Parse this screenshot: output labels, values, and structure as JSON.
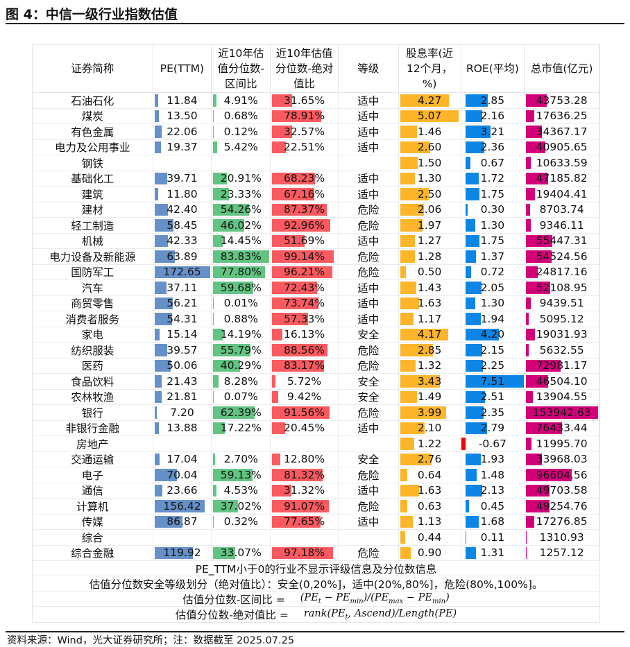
{
  "title": "图 4：中信一级行业指数估值",
  "headers": [
    "证券简称",
    "PE(TTM)",
    "近10年估值分位数-区间比",
    "近10年估值分位数-绝对值比",
    "等级",
    "股息率(近12个月，%)",
    "ROE(平均)",
    "总市值(亿元)"
  ],
  "colors": {
    "pe": "#6690c8",
    "pct_range": "#62c482",
    "pct_abs": "#fb5a60",
    "dividend": "#fdb52a",
    "roe": "#0b86e6",
    "roe_negative": "#ff0000",
    "mv": "#d3007a"
  },
  "rows": [
    [
      "石油石化",
      "11.84",
      "4.91%",
      "31.65%",
      "适中",
      "4.27",
      "2.85",
      "43753.28"
    ],
    [
      "煤炭",
      "13.50",
      "0.68%",
      "78.91%",
      "适中",
      "5.07",
      "2.16",
      "17636.25"
    ],
    [
      "有色金属",
      "22.06",
      "0.12%",
      "32.57%",
      "适中",
      "1.46",
      "3.21",
      "34367.17"
    ],
    [
      "电力及公用事业",
      "19.37",
      "5.42%",
      "22.51%",
      "适中",
      "2.60",
      "2.36",
      "40905.65"
    ],
    [
      "钢铁",
      "",
      "",
      "",
      "",
      "1.50",
      "0.67",
      "10633.59"
    ],
    [
      "基础化工",
      "39.71",
      "20.91%",
      "68.23%",
      "适中",
      "1.30",
      "1.72",
      "47185.82"
    ],
    [
      "建筑",
      "11.80",
      "23.33%",
      "67.16%",
      "适中",
      "2.50",
      "1.75",
      "19404.41"
    ],
    [
      "建材",
      "42.40",
      "54.26%",
      "87.37%",
      "危险",
      "2.06",
      "0.30",
      "8703.74"
    ],
    [
      "轻工制造",
      "58.45",
      "46.02%",
      "92.96%",
      "危险",
      "1.97",
      "1.30",
      "9346.11"
    ],
    [
      "机械",
      "42.33",
      "14.45%",
      "51.69%",
      "适中",
      "1.27",
      "1.75",
      "55447.31"
    ],
    [
      "电力设备及新能源",
      "63.89",
      "83.83%",
      "99.14%",
      "危险",
      "1.28",
      "1.37",
      "54524.56"
    ],
    [
      "国防军工",
      "172.65",
      "77.80%",
      "96.21%",
      "危险",
      "0.50",
      "0.72",
      "24817.16"
    ],
    [
      "汽车",
      "37.11",
      "59.68%",
      "72.43%",
      "适中",
      "1.43",
      "2.05",
      "52108.95"
    ],
    [
      "商贸零售",
      "56.21",
      "0.01%",
      "73.74%",
      "适中",
      "1.63",
      "1.30",
      "9439.51"
    ],
    [
      "消费者服务",
      "54.31",
      "0.88%",
      "57.33%",
      "适中",
      "1.17",
      "1.94",
      "5095.12"
    ],
    [
      "家电",
      "15.14",
      "14.19%",
      "16.13%",
      "安全",
      "4.17",
      "4.20",
      "19031.93"
    ],
    [
      "纺织服装",
      "39.57",
      "55.79%",
      "88.56%",
      "危险",
      "2.85",
      "2.15",
      "5632.55"
    ],
    [
      "医药",
      "50.06",
      "40.29%",
      "83.17%",
      "危险",
      "1.32",
      "2.25",
      "72981.17"
    ],
    [
      "食品饮料",
      "21.43",
      "8.28%",
      "5.72%",
      "安全",
      "3.43",
      "7.51",
      "46504.10"
    ],
    [
      "农林牧渔",
      "21.81",
      "0.07%",
      "9.42%",
      "安全",
      "1.49",
      "2.51",
      "13904.55"
    ],
    [
      "银行",
      "7.20",
      "62.39%",
      "91.56%",
      "危险",
      "3.99",
      "2.35",
      "153942.63"
    ],
    [
      "非银行金融",
      "13.88",
      "17.22%",
      "20.45%",
      "适中",
      "2.10",
      "2.79",
      "76433.44"
    ],
    [
      "房地产",
      "",
      "",
      "",
      "",
      "1.22",
      "-0.67",
      "11995.70"
    ],
    [
      "交通运输",
      "17.04",
      "2.70%",
      "12.80%",
      "安全",
      "2.76",
      "1.93",
      "33968.03"
    ],
    [
      "电子",
      "70.04",
      "59.13%",
      "81.32%",
      "危险",
      "0.64",
      "1.48",
      "96604.56"
    ],
    [
      "通信",
      "23.66",
      "4.53%",
      "31.32%",
      "适中",
      "1.63",
      "2.13",
      "49703.58"
    ],
    [
      "计算机",
      "156.42",
      "37.02%",
      "91.07%",
      "危险",
      "0.63",
      "0.45",
      "49254.76"
    ],
    [
      "传媒",
      "86.87",
      "0.32%",
      "77.65%",
      "适中",
      "1.13",
      "1.68",
      "17276.85"
    ],
    [
      "综合",
      "",
      "",
      "",
      "",
      "0.44",
      "0.11",
      "1310.93"
    ],
    [
      "综合金融",
      "119.92",
      "33.07%",
      "97.18%",
      "危险",
      "0.90",
      "1.31",
      "1257.12"
    ]
  ],
  "notes": {
    "note1": "PE_TTM小于0的行业不显示评级信息及分位数信息",
    "note2": "估值分位数安全等级划分（绝对值比）：安全(0,20%]，适中(20%,80%]，危险(80%,100%]。",
    "range_label": "估值分位数-区间比 =",
    "range_formula": "(PE_t − PE_min)/(PE_max − PE_min)",
    "abs_label": "估值分位数-绝对值比 =",
    "abs_formula": "rank(PE_t, Ascend)/Length(PE)"
  },
  "source": "资料来源：Wind，光大证券研究所；注：数据截至 2025.07.25"
}
